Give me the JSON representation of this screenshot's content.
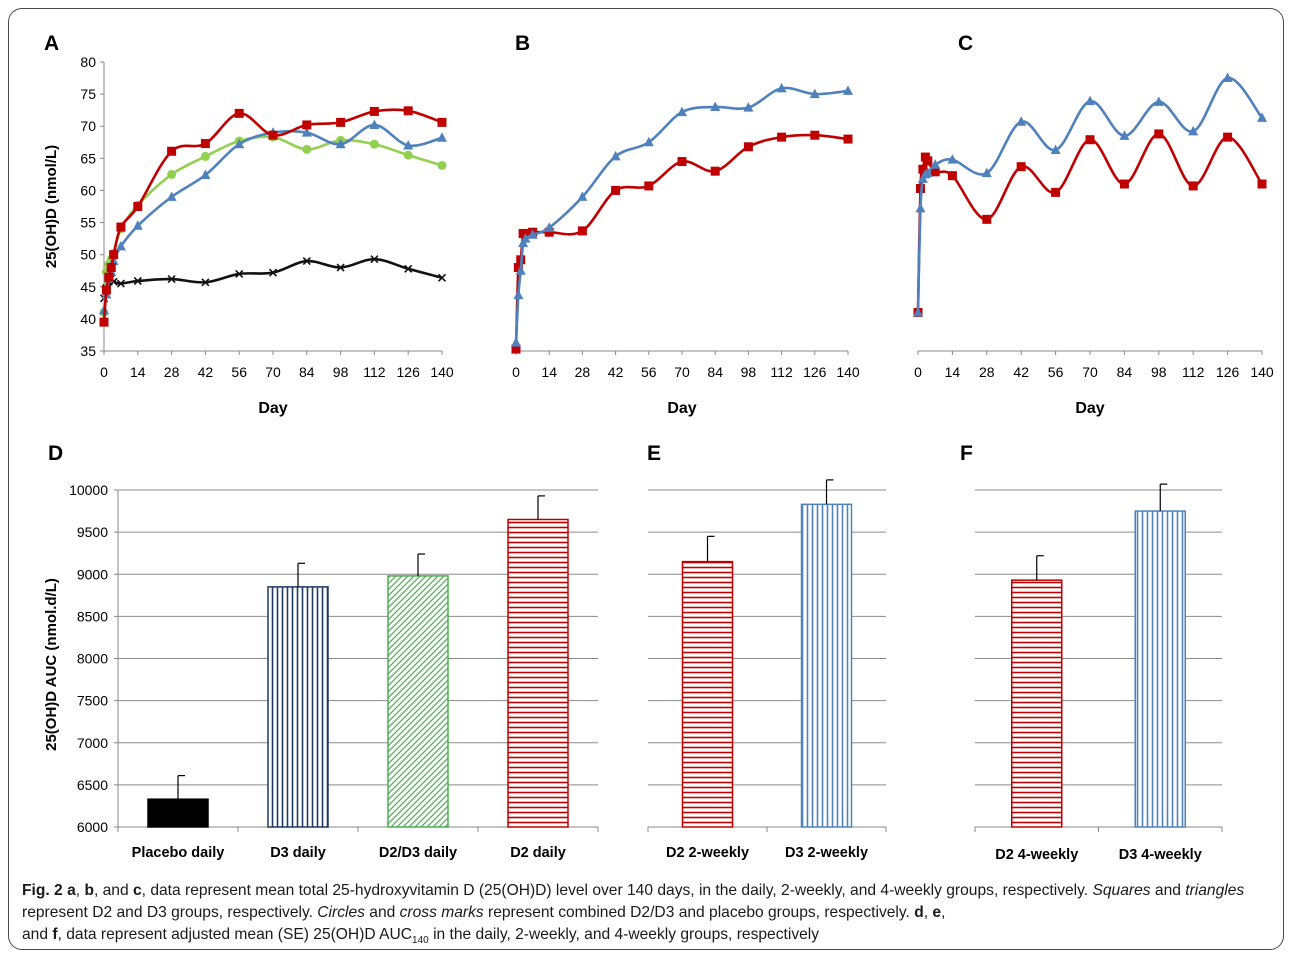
{
  "chart_data": [
    {
      "panel": "A",
      "type": "line",
      "ylabel": "25(OH)D (nmol/L)",
      "xlabel": "Day",
      "ylim": [
        35,
        80
      ],
      "yticks": [
        35,
        40,
        45,
        50,
        55,
        60,
        65,
        70,
        75,
        80
      ],
      "xlim": [
        0,
        140
      ],
      "xticks": [
        0,
        14,
        28,
        42,
        56,
        70,
        84,
        98,
        112,
        126,
        140
      ],
      "grid": false,
      "series": [
        {
          "group": "placebo",
          "color": "#111111",
          "marker": "cross",
          "x": [
            0,
            1,
            2,
            3,
            4,
            7,
            14,
            28,
            42,
            56,
            70,
            84,
            98,
            112,
            126,
            140
          ],
          "y": [
            43.2,
            44.8,
            45.8,
            46.3,
            45.8,
            45.5,
            45.9,
            46.2,
            45.7,
            47.0,
            47.2,
            49.0,
            48.0,
            49.3,
            47.8,
            46.4
          ]
        },
        {
          "group": "d2d3",
          "color": "#92d050",
          "marker": "circle",
          "x": [
            0,
            1,
            2,
            3,
            4,
            7,
            14,
            28,
            42,
            56,
            70,
            84,
            98,
            112,
            126,
            140
          ],
          "y": [
            41.0,
            47.3,
            48.5,
            49.3,
            50.2,
            54.0,
            57.7,
            62.5,
            65.3,
            67.7,
            68.3,
            66.4,
            67.8,
            67.2,
            65.5,
            63.9
          ]
        },
        {
          "group": "d3",
          "color": "#4f81bd",
          "marker": "triangle",
          "x": [
            0,
            1,
            2,
            3,
            4,
            7,
            14,
            28,
            42,
            56,
            70,
            84,
            98,
            112,
            126,
            140
          ],
          "y": [
            41.3,
            43.8,
            46.3,
            47.3,
            49.0,
            51.3,
            54.5,
            59.0,
            62.4,
            67.2,
            69.0,
            69.0,
            67.2,
            70.2,
            67.0,
            68.2
          ]
        },
        {
          "group": "d2",
          "color": "#c00000",
          "marker": "square",
          "x": [
            0,
            1,
            2,
            3,
            4,
            7,
            14,
            28,
            42,
            56,
            70,
            84,
            98,
            112,
            126,
            140
          ],
          "y": [
            39.5,
            44.5,
            46.5,
            48.0,
            50.0,
            54.3,
            57.5,
            66.1,
            67.3,
            72.0,
            68.6,
            70.2,
            70.6,
            72.3,
            72.4,
            70.6
          ]
        }
      ]
    },
    {
      "panel": "B",
      "type": "line",
      "xlabel": "Day",
      "ylim": [
        35,
        80
      ],
      "xlim": [
        0,
        140
      ],
      "xticks": [
        0,
        14,
        28,
        42,
        56,
        70,
        84,
        98,
        112,
        126,
        140
      ],
      "grid": false,
      "series": [
        {
          "group": "d2",
          "color": "#c00000",
          "marker": "square",
          "x": [
            0,
            1,
            2,
            3,
            4,
            7,
            14,
            28,
            42,
            56,
            70,
            84,
            98,
            112,
            126,
            140
          ],
          "y": [
            35.3,
            48.0,
            49.2,
            53.3,
            53.3,
            53.5,
            53.5,
            53.7,
            60.0,
            60.7,
            64.5,
            63.0,
            66.8,
            68.3,
            68.6,
            68.0
          ]
        },
        {
          "group": "d3",
          "color": "#4f81bd",
          "marker": "triangle",
          "x": [
            0,
            1,
            2,
            3,
            4,
            7,
            14,
            28,
            42,
            56,
            70,
            84,
            98,
            112,
            126,
            140
          ],
          "y": [
            36.3,
            43.7,
            47.5,
            51.8,
            52.5,
            53.1,
            54.2,
            59.0,
            65.3,
            67.5,
            72.2,
            73.0,
            72.9,
            75.9,
            75.0,
            75.5
          ]
        }
      ]
    },
    {
      "panel": "C",
      "type": "line",
      "xlabel": "Day",
      "ylim": [
        35,
        80
      ],
      "xlim": [
        0,
        140
      ],
      "xticks": [
        0,
        14,
        28,
        42,
        56,
        70,
        84,
        98,
        112,
        126,
        140
      ],
      "grid": false,
      "series": [
        {
          "group": "d2",
          "color": "#c00000",
          "marker": "square",
          "x": [
            0,
            1,
            2,
            3,
            4,
            7,
            14,
            28,
            42,
            56,
            70,
            84,
            98,
            112,
            126,
            140
          ],
          "y": [
            41.0,
            60.3,
            63.3,
            65.2,
            64.6,
            62.9,
            62.3,
            55.5,
            63.7,
            59.7,
            67.9,
            61.0,
            68.8,
            60.7,
            68.3,
            61.0
          ]
        },
        {
          "group": "d3",
          "color": "#4f81bd",
          "marker": "triangle",
          "x": [
            0,
            1,
            2,
            3,
            4,
            7,
            14,
            28,
            42,
            56,
            70,
            84,
            98,
            112,
            126,
            140
          ],
          "y": [
            41.0,
            57.2,
            61.8,
            62.5,
            62.7,
            64.0,
            64.8,
            62.7,
            70.7,
            66.3,
            73.9,
            68.5,
            73.8,
            69.2,
            77.5,
            71.3
          ]
        }
      ]
    },
    {
      "panel": "D",
      "type": "bar",
      "ylabel": "25(OH)D AUC (nmol.d/L)",
      "ylim": [
        6000,
        10000
      ],
      "yticks": [
        6000,
        6500,
        7000,
        7500,
        8000,
        8500,
        9000,
        9500,
        10000
      ],
      "grid": true,
      "categories": [
        "Placebo daily",
        "D3 daily",
        "D2/D3 daily",
        "D2 daily"
      ],
      "values": [
        6330,
        8850,
        8980,
        9650
      ],
      "errors": [
        280,
        280,
        260,
        280
      ],
      "styles": [
        {
          "fill": "solid",
          "color": "#000000"
        },
        {
          "fill": "vertical",
          "color": "#1f3864"
        },
        {
          "fill": "diagonal",
          "color": "#4caf50"
        },
        {
          "fill": "horizontal",
          "color": "#c00000"
        }
      ]
    },
    {
      "panel": "E",
      "type": "bar",
      "ylim": [
        6000,
        10000
      ],
      "grid": true,
      "categories": [
        "D2 2-weekly",
        "D3 2-weekly"
      ],
      "values": [
        9150,
        9830
      ],
      "errors": [
        300,
        290
      ],
      "styles": [
        {
          "fill": "horizontal",
          "color": "#c00000"
        },
        {
          "fill": "vertical",
          "color": "#4f81bd"
        }
      ]
    },
    {
      "panel": "F",
      "type": "bar",
      "ylim": [
        6000,
        10000
      ],
      "grid": true,
      "categories": [
        "D2 4-weekly",
        "D3 4-weekly"
      ],
      "values": [
        8930,
        9750
      ],
      "errors": [
        290,
        320
      ],
      "styles": [
        {
          "fill": "horizontal",
          "color": "#c00000"
        },
        {
          "fill": "vertical",
          "color": "#4f81bd"
        }
      ]
    }
  ],
  "caption": {
    "fig": "Fig. 2",
    "a": "a",
    "sep1": ", ",
    "b": "b",
    "sep2": ", and ",
    "c": "c",
    "text1": ", data represent mean total 25-hydroxyvitamin D (25(OH)D) level over 140 days, in the daily, 2-weekly, and 4-weekly groups, respectively.",
    "squares": "Squares",
    "and1": " and ",
    "triangles": "triangles",
    "text2": " represent D2 and D3 groups, respectively. ",
    "circles": "Circles",
    "and2": " and ",
    "cross": "cross marks",
    "text3": " represent combined D2/D3 and placebo groups, respectively. ",
    "d": "d",
    "sep3": ", ",
    "e": "e",
    "sep4": ",",
    "line3_start": "and ",
    "f": "f",
    "text4": ", data represent adjusted mean (SE) 25(OH)D AUC",
    "sub": "140",
    "text5": " in the daily, 2-weekly, and 4-weekly groups, respectively"
  }
}
